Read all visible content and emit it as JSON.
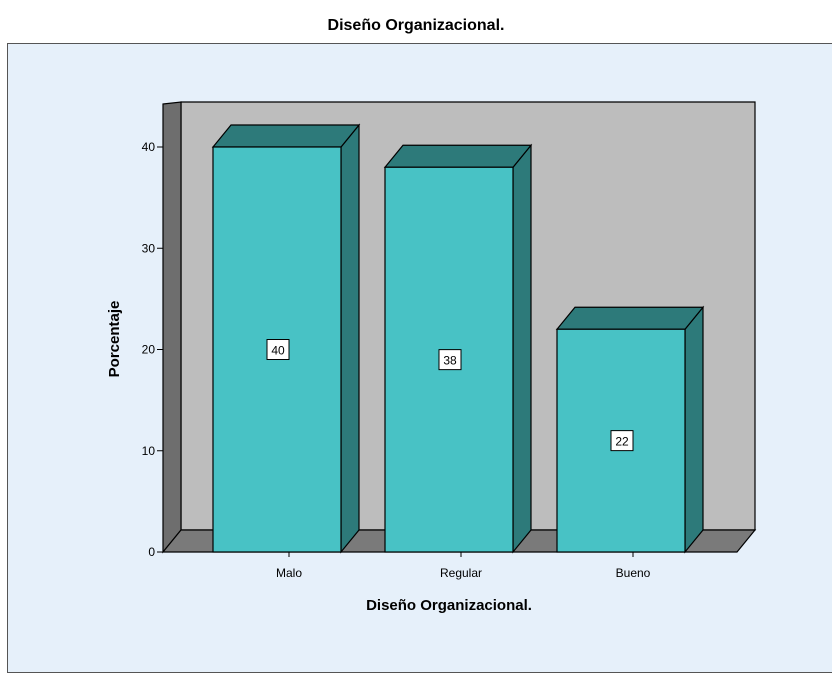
{
  "chart_data": {
    "type": "bar",
    "title": "Diseño Organizacional.",
    "xlabel": "Diseño Organizacional.",
    "ylabel": "Porcentaje",
    "categories": [
      "Malo",
      "Regular",
      "Bueno"
    ],
    "values": [
      40,
      38,
      22
    ],
    "data_labels": [
      "40",
      "38",
      "22"
    ],
    "ylim": [
      0,
      40
    ],
    "yticks": [
      0,
      10,
      20,
      30,
      40
    ],
    "ytick_labels": [
      "0",
      "10",
      "20",
      "30",
      "40"
    ],
    "bar_style": "3d",
    "colors": {
      "bar_front": "#48c2c5",
      "bar_top": "#2d7a7a",
      "bar_side": "#2d7a7a",
      "back_wall": "#bdbdbd",
      "side_wall": "#6e6e6e",
      "floor": "#7a7a7a",
      "plot_background": "#e6f0fa"
    }
  }
}
